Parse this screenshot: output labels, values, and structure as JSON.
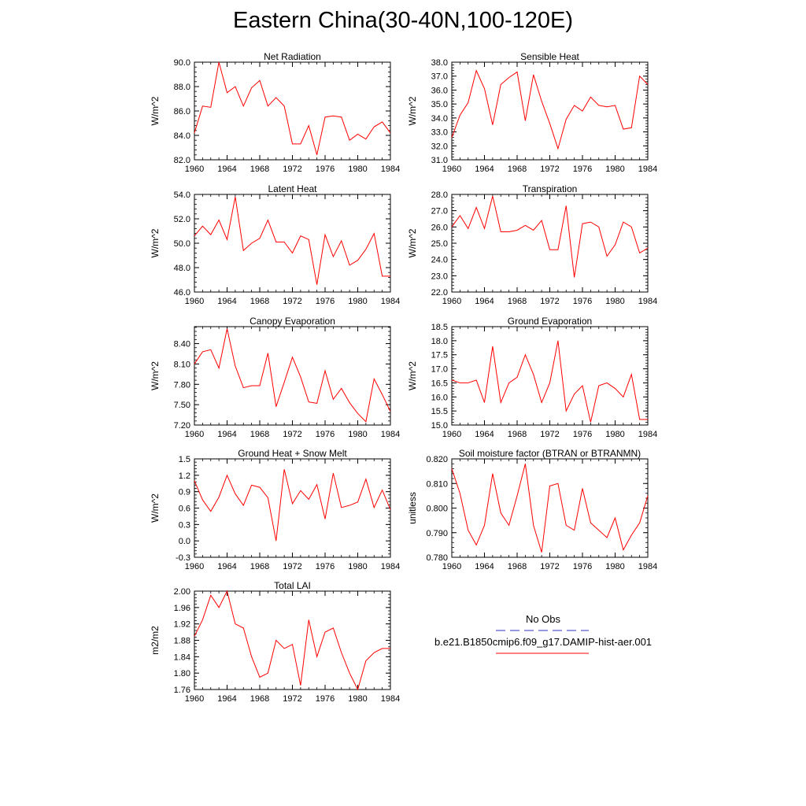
{
  "figure": {
    "title": "Eastern China(30-40N,100-120E)",
    "line_color": "#ff0000",
    "obs_line_color": "#3030c0"
  },
  "legend": {
    "obs_label": "No Obs",
    "model_label": "b.e21.B1850cmip6.f09_g17.DAMIP-hist-aer.001"
  },
  "chart_data": [
    {
      "type": "line",
      "title": "Net Radiation",
      "ylabel": "W/m^2",
      "x": [
        1960,
        1961,
        1962,
        1963,
        1964,
        1965,
        1966,
        1967,
        1968,
        1969,
        1970,
        1971,
        1972,
        1973,
        1974,
        1975,
        1976,
        1977,
        1978,
        1979,
        1980,
        1981,
        1982,
        1983,
        1984
      ],
      "y": [
        84.2,
        86.4,
        86.3,
        90.0,
        87.5,
        88.0,
        86.4,
        87.9,
        88.5,
        86.4,
        87.1,
        86.4,
        83.3,
        83.3,
        84.8,
        82.4,
        85.5,
        85.6,
        85.5,
        83.6,
        84.1,
        83.7,
        84.7,
        85.1,
        84.2
      ],
      "xlim": [
        1960,
        1984
      ],
      "ylim": [
        82.0,
        90.0
      ],
      "xticks": [
        "1960",
        "1964",
        "1968",
        "1972",
        "1976",
        "1980",
        "1984"
      ],
      "yticks": [
        "82.0",
        "84.0",
        "86.0",
        "88.0",
        "90.0"
      ]
    },
    {
      "type": "line",
      "title": "Sensible Heat",
      "ylabel": "W/m^2",
      "x": [
        1960,
        1961,
        1962,
        1963,
        1964,
        1965,
        1966,
        1967,
        1968,
        1969,
        1970,
        1971,
        1972,
        1973,
        1974,
        1975,
        1976,
        1977,
        1978,
        1979,
        1980,
        1981,
        1982,
        1983,
        1984
      ],
      "y": [
        32.6,
        34.2,
        35.1,
        37.4,
        36.1,
        33.5,
        36.4,
        36.9,
        37.3,
        33.8,
        37.1,
        35.2,
        33.6,
        31.8,
        33.9,
        34.9,
        34.5,
        35.5,
        34.9,
        34.8,
        34.9,
        33.2,
        33.3,
        37.0,
        36.4
      ],
      "xlim": [
        1960,
        1984
      ],
      "ylim": [
        31.0,
        38.0
      ],
      "xticks": [
        "1960",
        "1964",
        "1968",
        "1972",
        "1976",
        "1980",
        "1984"
      ],
      "yticks": [
        "31.0",
        "32.0",
        "33.0",
        "34.0",
        "35.0",
        "36.0",
        "37.0",
        "38.0"
      ]
    },
    {
      "type": "line",
      "title": "Latent Heat",
      "ylabel": "W/m^2",
      "x": [
        1960,
        1961,
        1962,
        1963,
        1964,
        1965,
        1966,
        1967,
        1968,
        1969,
        1970,
        1971,
        1972,
        1973,
        1974,
        1975,
        1976,
        1977,
        1978,
        1979,
        1980,
        1981,
        1982,
        1983,
        1984
      ],
      "y": [
        50.6,
        51.4,
        50.7,
        51.9,
        50.3,
        53.8,
        49.4,
        50.0,
        50.4,
        51.9,
        50.1,
        50.1,
        49.2,
        50.6,
        50.3,
        46.6,
        50.7,
        48.9,
        50.2,
        48.2,
        48.6,
        49.5,
        50.8,
        47.3,
        47.3
      ],
      "xlim": [
        1960,
        1984
      ],
      "ylim": [
        46.0,
        54.0
      ],
      "xticks": [
        "1960",
        "1964",
        "1968",
        "1972",
        "1976",
        "1980",
        "1984"
      ],
      "yticks": [
        "46.0",
        "48.0",
        "50.0",
        "52.0",
        "54.0"
      ]
    },
    {
      "type": "line",
      "title": "Transpiration",
      "ylabel": "W/m^2",
      "x": [
        1960,
        1961,
        1962,
        1963,
        1964,
        1965,
        1966,
        1967,
        1968,
        1969,
        1970,
        1971,
        1972,
        1973,
        1974,
        1975,
        1976,
        1977,
        1978,
        1979,
        1980,
        1981,
        1982,
        1983,
        1984
      ],
      "y": [
        26.0,
        26.7,
        25.9,
        27.2,
        25.9,
        27.9,
        25.7,
        25.7,
        25.8,
        26.1,
        25.8,
        26.4,
        24.6,
        24.6,
        27.3,
        22.9,
        26.2,
        26.3,
        26.0,
        24.2,
        24.9,
        26.3,
        26.0,
        24.4,
        24.7
      ],
      "xlim": [
        1960,
        1984
      ],
      "ylim": [
        22.0,
        28.0
      ],
      "xticks": [
        "1960",
        "1964",
        "1968",
        "1972",
        "1976",
        "1980",
        "1984"
      ],
      "yticks": [
        "22.0",
        "23.0",
        "24.0",
        "25.0",
        "26.0",
        "27.0",
        "28.0"
      ]
    },
    {
      "type": "line",
      "title": "Canopy Evaporation",
      "ylabel": "W/m^2",
      "x": [
        1960,
        1961,
        1962,
        1963,
        1964,
        1965,
        1966,
        1967,
        1968,
        1969,
        1970,
        1971,
        1972,
        1973,
        1974,
        1975,
        1976,
        1977,
        1978,
        1979,
        1980,
        1981,
        1982,
        1983,
        1984
      ],
      "y": [
        8.1,
        8.28,
        8.31,
        8.04,
        8.62,
        8.07,
        7.75,
        7.78,
        7.78,
        8.26,
        7.47,
        7.83,
        8.2,
        7.91,
        7.54,
        7.52,
        8.0,
        7.58,
        7.74,
        7.53,
        7.37,
        7.25,
        7.88,
        7.65,
        7.4
      ],
      "xlim": [
        1960,
        1984
      ],
      "ylim": [
        7.2,
        8.65
      ],
      "xticks": [
        "1960",
        "1964",
        "1968",
        "1972",
        "1976",
        "1980",
        "1984"
      ],
      "yticks": [
        "7.20",
        "7.50",
        "7.80",
        "8.10",
        "8.40"
      ]
    },
    {
      "type": "line",
      "title": "Ground Evaporation",
      "ylabel": "W/m^2",
      "x": [
        1960,
        1961,
        1962,
        1963,
        1964,
        1965,
        1966,
        1967,
        1968,
        1969,
        1970,
        1971,
        1972,
        1973,
        1974,
        1975,
        1976,
        1977,
        1978,
        1979,
        1980,
        1981,
        1982,
        1983,
        1984
      ],
      "y": [
        16.6,
        16.5,
        16.5,
        16.6,
        15.8,
        17.8,
        15.8,
        16.5,
        16.7,
        17.5,
        16.8,
        15.8,
        16.5,
        18.0,
        15.5,
        16.1,
        16.4,
        15.1,
        16.4,
        16.5,
        16.3,
        16.0,
        16.8,
        15.2,
        15.2
      ],
      "xlim": [
        1960,
        1984
      ],
      "ylim": [
        15.0,
        18.5
      ],
      "xticks": [
        "1960",
        "1964",
        "1968",
        "1972",
        "1976",
        "1980",
        "1984"
      ],
      "yticks": [
        "15.0",
        "15.5",
        "16.0",
        "16.5",
        "17.0",
        "17.5",
        "18.0",
        "18.5"
      ]
    },
    {
      "type": "line",
      "title": "Ground Heat + Snow Melt",
      "ylabel": "W/m^2",
      "x": [
        1960,
        1961,
        1962,
        1963,
        1964,
        1965,
        1966,
        1967,
        1968,
        1969,
        1970,
        1971,
        1972,
        1973,
        1974,
        1975,
        1976,
        1977,
        1978,
        1979,
        1980,
        1981,
        1982,
        1983,
        1984
      ],
      "y": [
        1.1,
        0.75,
        0.54,
        0.8,
        1.2,
        0.86,
        0.65,
        1.02,
        0.98,
        0.79,
        0.0,
        1.31,
        0.68,
        0.92,
        0.76,
        1.03,
        0.4,
        1.24,
        0.61,
        0.65,
        0.71,
        1.13,
        0.61,
        0.93,
        0.57
      ],
      "xlim": [
        1960,
        1984
      ],
      "ylim": [
        -0.3,
        1.5
      ],
      "xticks": [
        "1960",
        "1964",
        "1968",
        "1972",
        "1976",
        "1980",
        "1984"
      ],
      "yticks": [
        "-0.3",
        "0.0",
        "0.3",
        "0.6",
        "0.9",
        "1.2",
        "1.5"
      ]
    },
    {
      "type": "line",
      "title": "Soil moisture factor (BTRAN or BTRANMN)",
      "ylabel": "unitless",
      "x": [
        1960,
        1961,
        1962,
        1963,
        1964,
        1965,
        1966,
        1967,
        1968,
        1969,
        1970,
        1971,
        1972,
        1973,
        1974,
        1975,
        1976,
        1977,
        1978,
        1979,
        1980,
        1981,
        1982,
        1983,
        1984
      ],
      "y": [
        0.816,
        0.806,
        0.791,
        0.785,
        0.793,
        0.814,
        0.798,
        0.793,
        0.805,
        0.818,
        0.793,
        0.782,
        0.809,
        0.81,
        0.793,
        0.791,
        0.808,
        0.794,
        0.791,
        0.788,
        0.796,
        0.783,
        0.789,
        0.794,
        0.805
      ],
      "xlim": [
        1960,
        1984
      ],
      "ylim": [
        0.78,
        0.82
      ],
      "xticks": [
        "1960",
        "1964",
        "1968",
        "1972",
        "1976",
        "1980",
        "1984"
      ],
      "yticks": [
        "0.780",
        "0.790",
        "0.800",
        "0.810",
        "0.820"
      ]
    },
    {
      "type": "line",
      "title": "Total LAI",
      "ylabel": "m2/m2",
      "x": [
        1960,
        1961,
        1962,
        1963,
        1964,
        1965,
        1966,
        1967,
        1968,
        1969,
        1970,
        1971,
        1972,
        1973,
        1974,
        1975,
        1976,
        1977,
        1978,
        1979,
        1980,
        1981,
        1982,
        1983,
        1984
      ],
      "y": [
        1.89,
        1.93,
        1.99,
        1.96,
        2.0,
        1.92,
        1.91,
        1.84,
        1.79,
        1.8,
        1.88,
        1.86,
        1.87,
        1.77,
        1.93,
        1.84,
        1.9,
        1.91,
        1.85,
        1.8,
        1.76,
        1.83,
        1.85,
        1.86,
        1.86
      ],
      "xlim": [
        1960,
        1984
      ],
      "ylim": [
        1.76,
        2.0
      ],
      "xticks": [
        "1960",
        "1964",
        "1968",
        "1972",
        "1976",
        "1980",
        "1984"
      ],
      "yticks": [
        "1.76",
        "1.80",
        "1.84",
        "1.88",
        "1.92",
        "1.96",
        "2.00"
      ]
    }
  ]
}
